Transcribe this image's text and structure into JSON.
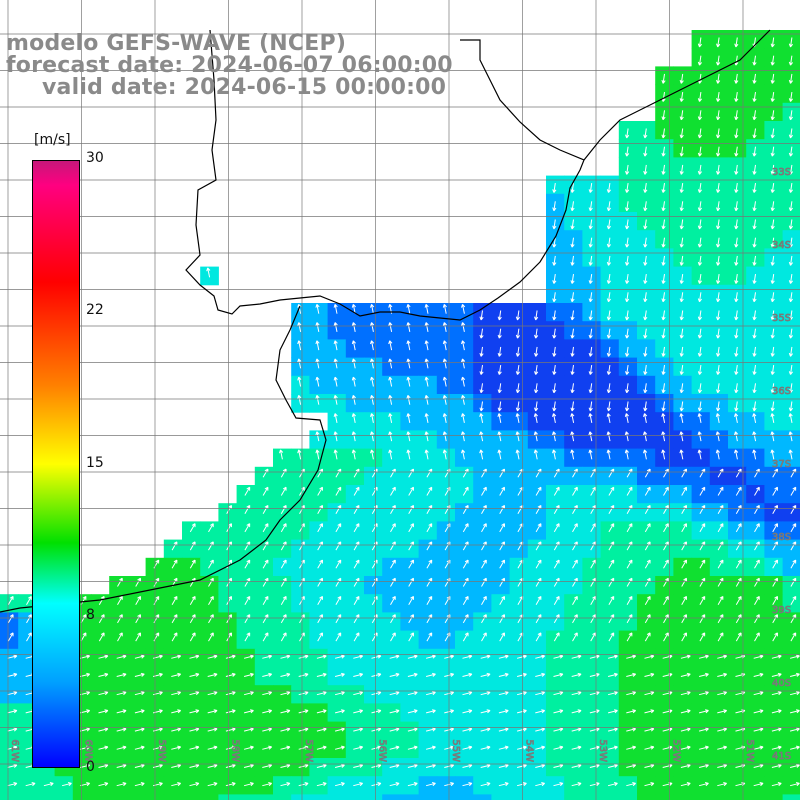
{
  "header": {
    "model": "modelo GEFS-WAVE (NCEP)",
    "forecast": "forecast date: 2024-06-07 06:00:00",
    "valid": "valid date: 2024-06-15 00:00:00"
  },
  "colorbar": {
    "unit": "[m/s]",
    "ticks": [
      "30",
      "22",
      "15",
      "8",
      "0"
    ],
    "tick_values": [
      30,
      22,
      15,
      8,
      0
    ],
    "colors": [
      "#0000ff",
      "#00a0ff",
      "#00ffff",
      "#00e000",
      "#ffff00",
      "#ff8000",
      "#ff0000",
      "#ff0080",
      "#c6177a"
    ]
  },
  "grid": {
    "lat_labels": [
      "33S",
      "34S",
      "35S",
      "36S",
      "37S",
      "38S",
      "39S",
      "40S",
      "41S"
    ],
    "lon_labels": [
      "61W",
      "60W",
      "59W",
      "58W",
      "57W",
      "56W",
      "55W",
      "54W",
      "53W",
      "52W",
      "51W"
    ]
  },
  "map_features": [
    "coastline",
    "wind-vectors",
    "grid"
  ]
}
